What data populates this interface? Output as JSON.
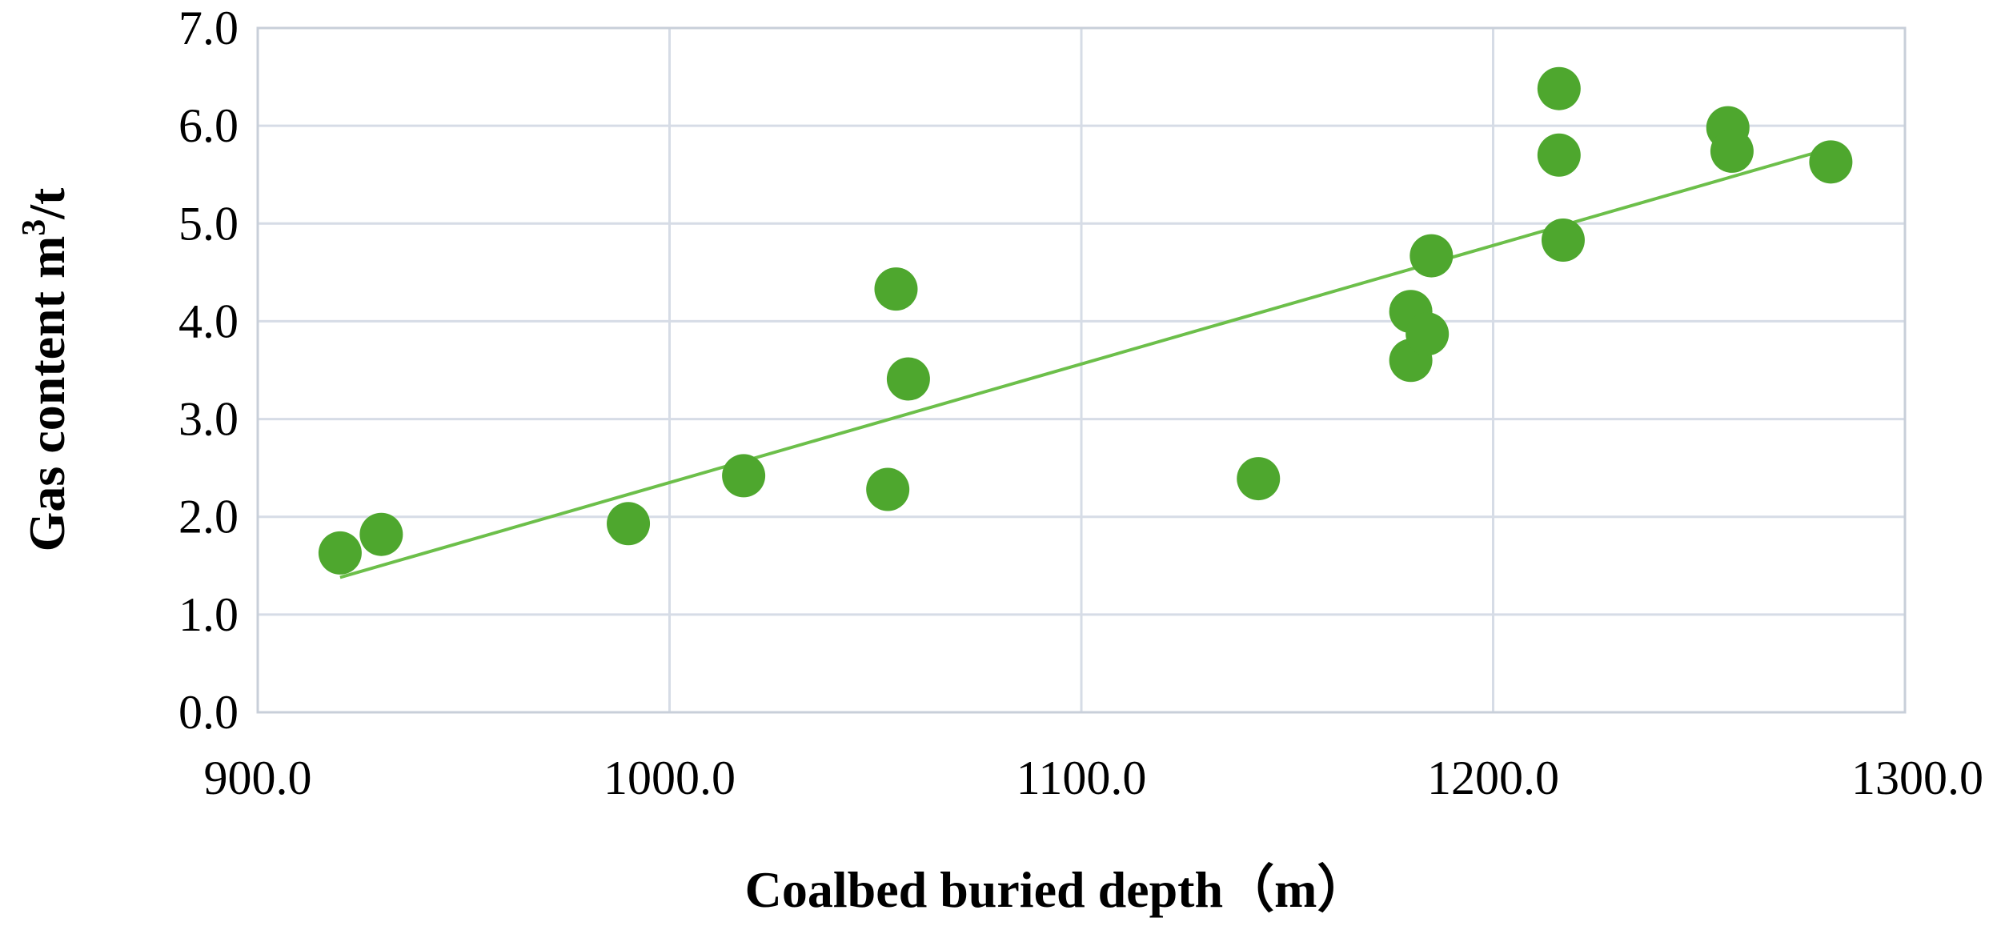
{
  "chart_data": {
    "type": "scatter",
    "title": "",
    "xlabel": "Coalbed buried depth（m）",
    "ylabel_main": "Gas content m",
    "ylabel_sup": "3",
    "ylabel_tail": "/t",
    "xlim": [
      900,
      1300
    ],
    "ylim": [
      0,
      7
    ],
    "x_ticks": [
      "900.0",
      "1000.0",
      "1100.0",
      "1200.0",
      "1300.0"
    ],
    "y_ticks": [
      "0.0",
      "1.0",
      "2.0",
      "3.0",
      "4.0",
      "5.0",
      "6.0",
      "7.0"
    ],
    "grid": true,
    "legend": "none",
    "point_color": "#4ea72e",
    "trend_color": "#6cbf4a",
    "series": [
      {
        "points": [
          {
            "x": 920,
            "y": 1.63
          },
          {
            "x": 930,
            "y": 1.82
          },
          {
            "x": 990,
            "y": 1.93
          },
          {
            "x": 1018,
            "y": 2.42
          },
          {
            "x": 1053,
            "y": 2.28
          },
          {
            "x": 1055,
            "y": 4.33
          },
          {
            "x": 1058,
            "y": 3.41
          },
          {
            "x": 1143,
            "y": 2.39
          },
          {
            "x": 1180,
            "y": 4.1
          },
          {
            "x": 1180,
            "y": 3.6
          },
          {
            "x": 1184,
            "y": 3.87
          },
          {
            "x": 1185,
            "y": 4.67
          },
          {
            "x": 1216,
            "y": 6.38
          },
          {
            "x": 1216,
            "y": 5.7
          },
          {
            "x": 1217,
            "y": 4.83
          },
          {
            "x": 1257,
            "y": 5.98
          },
          {
            "x": 1258,
            "y": 5.74
          },
          {
            "x": 1282,
            "y": 5.63
          }
        ]
      }
    ],
    "trendline": [
      {
        "x": 920,
        "y": 1.38
      },
      {
        "x": 1282,
        "y": 5.77
      }
    ]
  }
}
